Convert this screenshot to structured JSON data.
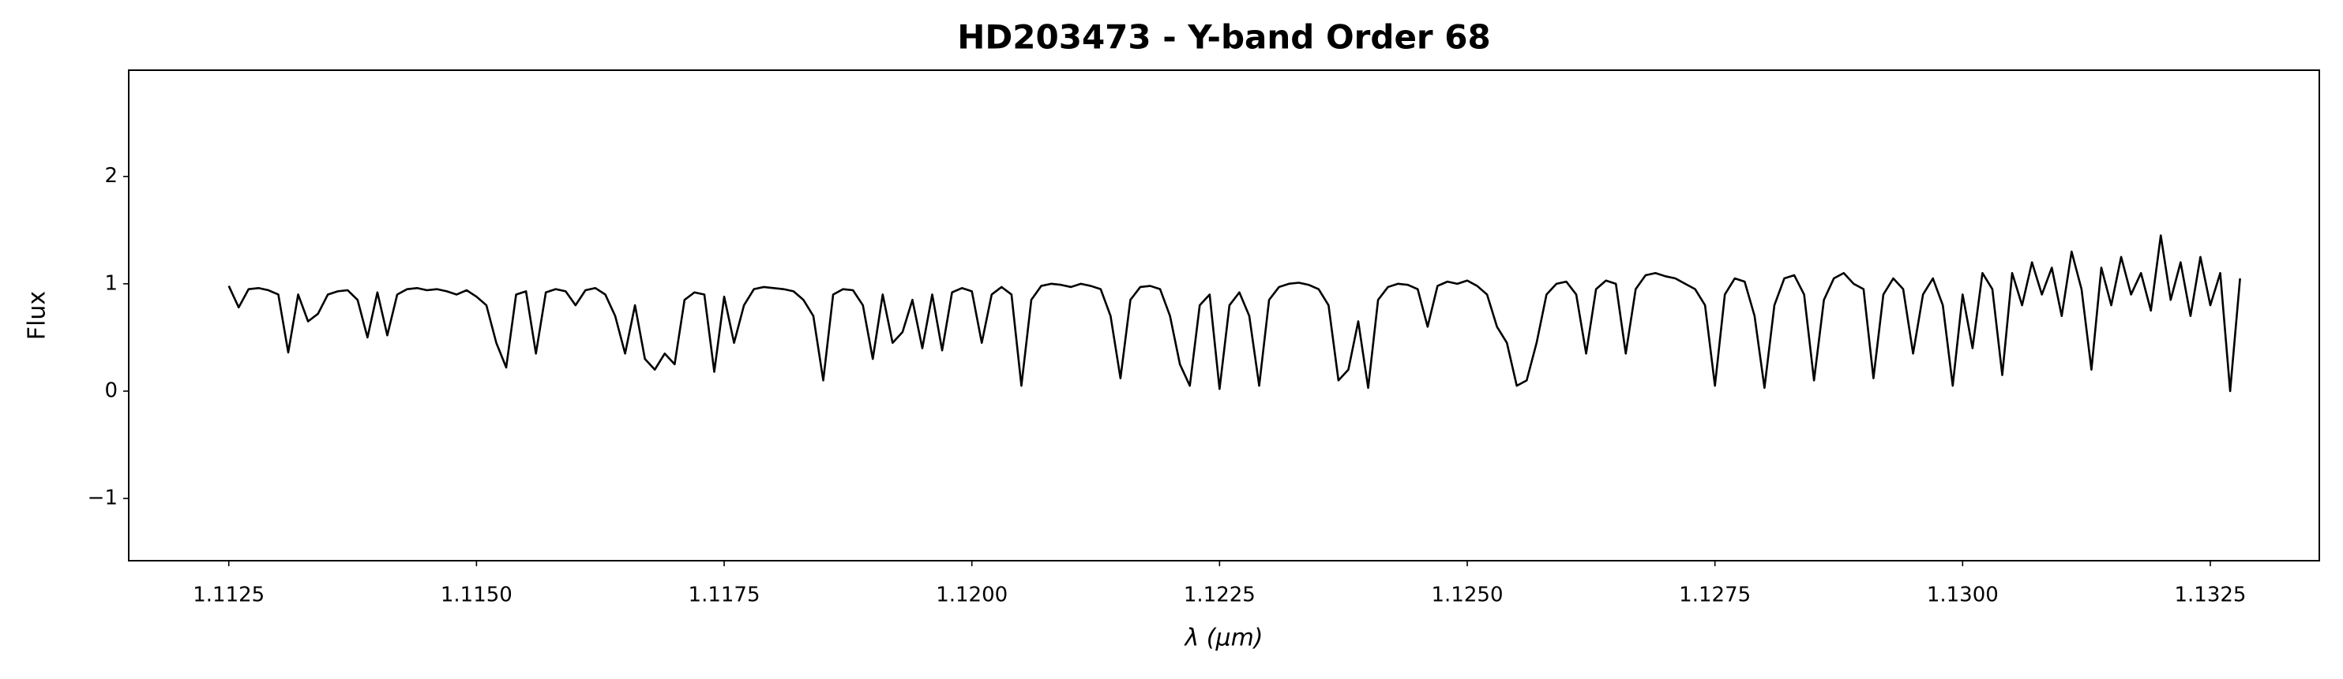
{
  "chart_data": {
    "type": "line",
    "title": "HD203473 - Y-band Order 68",
    "xlabel": "λ (μm)",
    "ylabel": "Flux",
    "color": "#000000",
    "x": [
      1.1125,
      1.1126,
      1.1127,
      1.1128,
      1.1129,
      1.113,
      1.1131,
      1.1132,
      1.1133,
      1.1134,
      1.1135,
      1.1136,
      1.1137,
      1.1138,
      1.1139,
      1.114,
      1.1141,
      1.1142,
      1.1143,
      1.1144,
      1.1145,
      1.1146,
      1.1147,
      1.1148,
      1.1149,
      1.115,
      1.1151,
      1.1152,
      1.1153,
      1.1154,
      1.1155,
      1.1156,
      1.1157,
      1.1158,
      1.1159,
      1.116,
      1.1161,
      1.1162,
      1.1163,
      1.1164,
      1.1165,
      1.1166,
      1.1167,
      1.1168,
      1.1169,
      1.117,
      1.1171,
      1.1172,
      1.1173,
      1.1174,
      1.1175,
      1.1176,
      1.1177,
      1.1178,
      1.1179,
      1.118,
      1.1181,
      1.1182,
      1.1183,
      1.1184,
      1.1185,
      1.1186,
      1.1187,
      1.1188,
      1.1189,
      1.119,
      1.1191,
      1.1192,
      1.1193,
      1.1194,
      1.1195,
      1.1196,
      1.1197,
      1.1198,
      1.1199,
      1.12,
      1.1201,
      1.1202,
      1.1203,
      1.1204,
      1.1205,
      1.1206,
      1.1207,
      1.1208,
      1.1209,
      1.121,
      1.1211,
      1.1212,
      1.1213,
      1.1214,
      1.1215,
      1.1216,
      1.1217,
      1.1218,
      1.1219,
      1.122,
      1.1221,
      1.1222,
      1.1223,
      1.1224,
      1.1225,
      1.1226,
      1.1227,
      1.1228,
      1.1229,
      1.123,
      1.1231,
      1.1232,
      1.1233,
      1.1234,
      1.1235,
      1.1236,
      1.1237,
      1.1238,
      1.1239,
      1.124,
      1.1241,
      1.1242,
      1.1243,
      1.1244,
      1.1245,
      1.1246,
      1.1247,
      1.1248,
      1.1249,
      1.125,
      1.1251,
      1.1252,
      1.1253,
      1.1254,
      1.1255,
      1.1256,
      1.1257,
      1.1258,
      1.1259,
      1.126,
      1.1261,
      1.1262,
      1.1263,
      1.1264,
      1.1265,
      1.1266,
      1.1267,
      1.1268,
      1.1269,
      1.127,
      1.1271,
      1.1272,
      1.1273,
      1.1274,
      1.1275,
      1.1276,
      1.1277,
      1.1278,
      1.1279,
      1.128,
      1.1281,
      1.1282,
      1.1283,
      1.1284,
      1.1285,
      1.1286,
      1.1287,
      1.1288,
      1.1289,
      1.129,
      1.1291,
      1.1292,
      1.1293,
      1.1294,
      1.1295,
      1.1296,
      1.1297,
      1.1298,
      1.1299,
      1.13,
      1.1301,
      1.1302,
      1.1303,
      1.1304,
      1.1305,
      1.1306,
      1.1307,
      1.1308,
      1.1309,
      1.131,
      1.1311,
      1.1312,
      1.1313,
      1.1314,
      1.1315,
      1.1316,
      1.1317,
      1.1318,
      1.1319,
      1.132,
      1.1321,
      1.1322,
      1.1323,
      1.1324,
      1.1325,
      1.1326,
      1.1327,
      1.1328
    ],
    "values": [
      0.98,
      0.78,
      0.95,
      0.96,
      0.94,
      0.9,
      0.36,
      0.9,
      0.65,
      0.72,
      0.9,
      0.93,
      0.94,
      0.85,
      0.5,
      0.92,
      0.52,
      0.9,
      0.95,
      0.96,
      0.94,
      0.95,
      0.93,
      0.9,
      0.94,
      0.88,
      0.8,
      0.45,
      0.22,
      0.9,
      0.93,
      0.35,
      0.92,
      0.95,
      0.93,
      0.8,
      0.94,
      0.96,
      0.9,
      0.7,
      0.35,
      0.8,
      0.3,
      0.2,
      0.35,
      0.25,
      0.85,
      0.92,
      0.9,
      0.18,
      0.88,
      0.45,
      0.8,
      0.95,
      0.97,
      0.96,
      0.95,
      0.93,
      0.85,
      0.7,
      0.1,
      0.9,
      0.95,
      0.94,
      0.8,
      0.3,
      0.9,
      0.45,
      0.55,
      0.85,
      0.4,
      0.9,
      0.38,
      0.92,
      0.96,
      0.93,
      0.45,
      0.9,
      0.97,
      0.9,
      0.05,
      0.85,
      0.98,
      1.0,
      0.99,
      0.97,
      1.0,
      0.98,
      0.95,
      0.7,
      0.12,
      0.85,
      0.97,
      0.98,
      0.95,
      0.7,
      0.25,
      0.05,
      0.8,
      0.9,
      0.02,
      0.8,
      0.92,
      0.7,
      0.05,
      0.85,
      0.97,
      1.0,
      1.01,
      0.99,
      0.95,
      0.8,
      0.1,
      0.2,
      0.65,
      0.03,
      0.85,
      0.97,
      1.0,
      0.99,
      0.95,
      0.6,
      0.98,
      1.02,
      1.0,
      1.03,
      0.98,
      0.9,
      0.6,
      0.45,
      0.05,
      0.1,
      0.45,
      0.9,
      1.0,
      1.02,
      0.9,
      0.35,
      0.95,
      1.03,
      1.0,
      0.35,
      0.95,
      1.08,
      1.1,
      1.07,
      1.05,
      1.0,
      0.95,
      0.8,
      0.05,
      0.9,
      1.05,
      1.02,
      0.7,
      0.03,
      0.8,
      1.05,
      1.08,
      0.9,
      0.1,
      0.85,
      1.05,
      1.1,
      1.0,
      0.95,
      0.12,
      0.9,
      1.05,
      0.95,
      0.35,
      0.9,
      1.05,
      0.8,
      0.05,
      0.9,
      0.4,
      1.1,
      0.95,
      0.15,
      1.1,
      0.8,
      1.2,
      0.9,
      1.15,
      0.7,
      1.3,
      0.95,
      0.2,
      1.15,
      0.8,
      1.25,
      0.9,
      1.1,
      0.75,
      1.45,
      0.85,
      1.2,
      0.7,
      1.25,
      0.8,
      1.1,
      0.0,
      1.05
    ],
    "xlim": [
      1.11149,
      1.1336
    ],
    "xticks": [
      1.1125,
      {
        "value": 1.115,
        "label": "1.1150"
      },
      1.1175,
      {
        "value": 1.12,
        "label": "1.1200"
      },
      1.1225,
      {
        "value": 1.125,
        "label": "1.1250"
      },
      1.1275,
      {
        "value": 1.13,
        "label": "1.1300"
      },
      1.1325
    ],
    "ylim": [
      -1.58,
      2.99
    ],
    "yticks": [
      {
        "value": -1,
        "label": "−1"
      },
      0,
      1,
      2
    ],
    "grid": false
  }
}
